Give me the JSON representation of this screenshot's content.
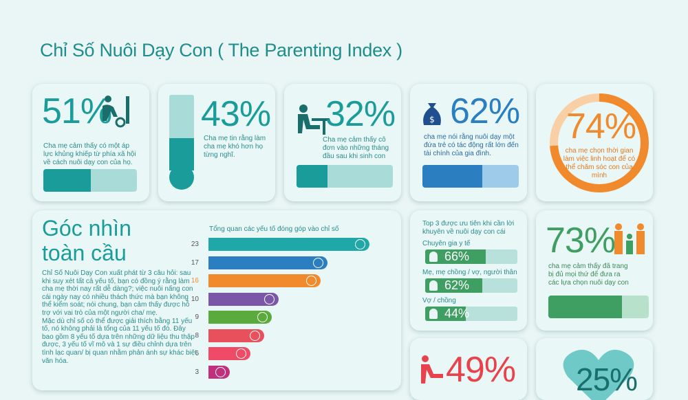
{
  "title": "Chỉ Số Nuôi Dạy Con ( The Parenting Index )",
  "stats": {
    "s51": {
      "value": "51%",
      "text": "Cha mẹ cảm thấy có một áp lực khủng khiếp từ phía xã hội về cách nuôi dạy con của họ.",
      "fill": 0.51
    },
    "s43": {
      "value": "43%",
      "text": "Cha mẹ tin rằng làm cha mẹ khó hơn họ từng nghĩ.",
      "fill": 0.43
    },
    "s32": {
      "value": "32%",
      "text": "Cha mẹ cảm thấy cô đơn vào những tháng đầu sau khi sinh con",
      "fill": 0.32
    },
    "s62": {
      "value": "62%",
      "text": "cha mẹ nói rằng nuôi dạy một đứa trẻ có tác động rất lớn đến tài chính của gia đình.",
      "fill": 0.62
    },
    "s74": {
      "value": "74%",
      "text": "cha mẹ chọn  thời gian làm việc linh hoạt để có thể chăm sóc con của mình",
      "fill": 0.74
    },
    "s73": {
      "value": "73%",
      "text": "cha mẹ cảm thấy đã trang bị đủ mọi thứ để đưa ra các lựa chọn nuôi dạy con",
      "fill": 0.73
    },
    "s49": {
      "value": "49%"
    },
    "s25": {
      "value": "25%"
    }
  },
  "global": {
    "heading_line1": "Góc nhìn",
    "heading_line2": "toàn cầu",
    "body": "Chỉ Số Nuôi Dạy Con xuất phát từ 3 câu hỏi: sau khi suy xét tất cả yếu tố, bạn có đồng ý rằng làm cha mẹ thời nay rất dễ dàng?; việc nuôi nấng con cái ngày nay có nhiều thách thức mà bạn không thể kiểm soát; nói chung, bạn cảm thấy được hỗ trợ với vai trò của một người cha/ mẹ.\nMặc dù chỉ số có thể được giải thích bằng 11 yếu tố, nó không phải là tổng của 11 yếu tố đó. Đây bao gồm 8 yếu tố dựa trên những dữ liệu thu thập được, 3 yếu tố vĩ mô và 1 sự điều chỉnh dựa trên tình lạc quan/ bị quan nhằm phản ánh sự khác biệt văn hóa.",
    "chart_title": "Tổng quan các yếu tố đóng góp vào chỉ số"
  },
  "chart_data": {
    "type": "bar",
    "title": "Tổng quan các yếu tố đóng góp vào chỉ số",
    "orientation": "horizontal",
    "categories": [
      "23",
      "17",
      "16",
      "10",
      "9",
      "8",
      "6",
      "3"
    ],
    "values": [
      23,
      17,
      16,
      10,
      9,
      8,
      6,
      3
    ],
    "colors": [
      "#20a8a8",
      "#2b7fc1",
      "#f08a2c",
      "#7b57a8",
      "#5aaa3c",
      "#e8505b",
      "#ef4b66",
      "#c1307c"
    ],
    "label_colors": [
      "#555555",
      "#555555",
      "#f08a2c",
      "#555555",
      "#555555",
      "#555555",
      "#555555",
      "#555555"
    ],
    "icons": [
      "stroller-icon",
      "piggy-bank-icon",
      "baby-icon",
      "child-icon",
      "play-icon",
      "heart-icon",
      "hands-icon",
      "person-icon"
    ],
    "xlim": [
      0,
      23
    ]
  },
  "priorities": {
    "title": "Top 3 được ưu tiên khi cần lời khuyên về nuôi dạy con cái",
    "items": [
      {
        "label": "Chuyên gia y tế",
        "value": "66%",
        "fill": 0.66
      },
      {
        "label": "Mẹ, mẹ chồng / vợ, người thân",
        "value": "62%",
        "fill": 0.62
      },
      {
        "label": "Vợ / chồng",
        "value": "44%",
        "fill": 0.44
      }
    ]
  },
  "colors": {
    "teal": "#1a9c9a",
    "teal_light": "#a9dcd9",
    "blue": "#2b7fc1",
    "orange": "#f08a2c",
    "green": "#3f9e61",
    "red": "#e8424c"
  }
}
